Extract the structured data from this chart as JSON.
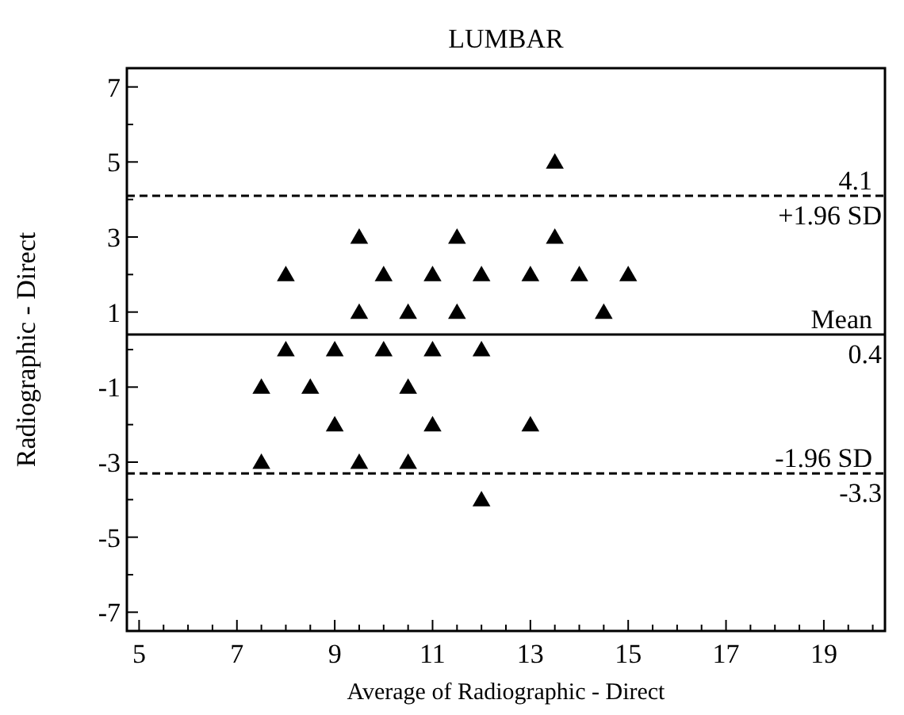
{
  "chart_data": {
    "type": "scatter",
    "title": "LUMBAR",
    "xlabel": "Average of Radiographic - Direct",
    "ylabel": "Radiographic - Direct",
    "x": [
      7.5,
      7.5,
      8,
      8,
      8.5,
      9,
      9,
      9.5,
      9.5,
      9.5,
      10,
      10,
      10.5,
      10.5,
      10.5,
      11,
      11,
      11,
      11.5,
      11.5,
      12,
      12,
      12,
      13,
      13,
      13.5,
      13.5,
      14,
      14.5,
      15
    ],
    "values": [
      -1,
      -3,
      2,
      0,
      -1,
      0,
      -2,
      3,
      1,
      -3,
      2,
      0,
      1,
      -1,
      -3,
      2,
      0,
      -2,
      3,
      1,
      2,
      0,
      -4,
      2,
      -2,
      5,
      3,
      2,
      1,
      2
    ],
    "color": "#000000",
    "marker": "triangle",
    "xlim": [
      4.75,
      20.25
    ],
    "ylim": [
      -7.5,
      7.5
    ],
    "xticks": [
      5,
      {
        "value": 5.5,
        "label": null
      },
      {
        "value": 6,
        "label": null
      },
      {
        "value": 6.5,
        "label": null
      },
      7,
      {
        "value": 7.5,
        "label": null
      },
      {
        "value": 8,
        "label": null
      },
      {
        "value": 8.5,
        "label": null
      },
      9,
      {
        "value": 9.5,
        "label": null
      },
      {
        "value": 10,
        "label": null
      },
      {
        "value": 10.5,
        "label": null
      },
      11,
      {
        "value": 11.5,
        "label": null
      },
      {
        "value": 12,
        "label": null
      },
      {
        "value": 12.5,
        "label": null
      },
      13,
      {
        "value": 13.5,
        "label": null
      },
      {
        "value": 14,
        "label": null
      },
      {
        "value": 14.5,
        "label": null
      },
      15,
      {
        "value": 15.5,
        "label": null
      },
      {
        "value": 16,
        "label": null
      },
      {
        "value": 16.5,
        "label": null
      },
      17,
      {
        "value": 17.5,
        "label": null
      },
      {
        "value": 18,
        "label": null
      },
      {
        "value": 18.5,
        "label": null
      },
      19,
      {
        "value": 19.5,
        "label": null
      },
      {
        "value": 20,
        "label": null
      }
    ],
    "yticks": [
      -7,
      {
        "value": -6,
        "label": null
      },
      -5,
      {
        "value": -4,
        "label": null
      },
      -3,
      {
        "value": -2,
        "label": null
      },
      -1,
      {
        "value": 0,
        "label": null
      },
      1,
      {
        "value": 2,
        "label": null
      },
      3,
      {
        "value": 4,
        "label": null
      },
      5,
      {
        "value": 6,
        "label": null
      },
      7
    ],
    "ref_lines": [
      {
        "axis": "y",
        "value": 4.1,
        "label": "+1.96 SD",
        "line_style": "dashed"
      },
      {
        "axis": "y",
        "value": 0.4,
        "label": "0.4",
        "line_style": "solid"
      },
      {
        "axis": "y",
        "value": -3.3,
        "label": "-3.3",
        "line_style": "dashed"
      }
    ],
    "annotations": [
      {
        "text": "4.1",
        "y": 4.1
      },
      {
        "text": "Mean",
        "y": 0.4
      },
      {
        "text": "-1.96 SD",
        "y": -3.3
      }
    ],
    "grid": false
  }
}
